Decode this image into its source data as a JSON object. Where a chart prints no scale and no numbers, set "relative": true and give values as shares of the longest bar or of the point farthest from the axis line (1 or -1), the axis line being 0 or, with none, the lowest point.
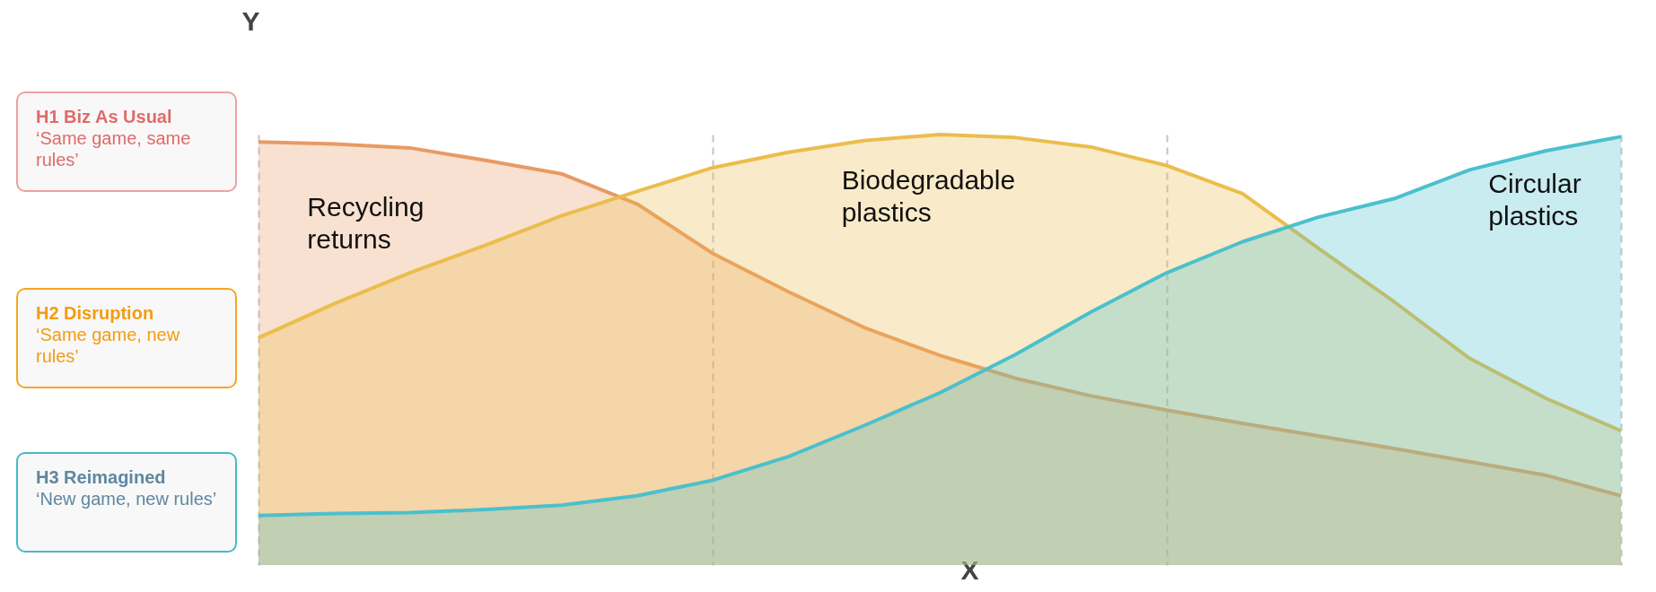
{
  "chart_data": {
    "type": "area",
    "relative": true,
    "xlabel": "X",
    "ylabel": "Y",
    "grid": "x",
    "tick_labels": false,
    "categories": [
      null,
      null,
      null,
      null,
      null,
      null,
      null,
      null,
      null,
      null,
      null,
      null,
      null,
      null,
      null,
      null,
      null,
      null,
      null
    ],
    "series": [
      {
        "name": "Recycling returns",
        "color": "#e89a63",
        "values": [
          0.983,
          0.978,
          0.969,
          0.94,
          0.909,
          0.839,
          0.724,
          0.635,
          0.552,
          0.487,
          0.434,
          0.393,
          0.36,
          0.329,
          0.3,
          0.271,
          0.24,
          0.209,
          0.161
        ]
      },
      {
        "name": "Biodegradable plastics",
        "color": "#ebbd4b",
        "values": [
          0.528,
          0.607,
          0.679,
          0.743,
          0.811,
          0.868,
          0.923,
          0.959,
          0.986,
          1.0,
          0.993,
          0.971,
          0.928,
          0.863,
          0.736,
          0.612,
          0.48,
          0.388,
          0.312
        ]
      },
      {
        "name": "Circular plastics",
        "color": "#4bc0cc",
        "values": [
          0.115,
          0.12,
          0.122,
          0.129,
          0.139,
          0.161,
          0.197,
          0.252,
          0.324,
          0.4,
          0.489,
          0.588,
          0.679,
          0.751,
          0.808,
          0.851,
          0.918,
          0.962,
          0.995
        ]
      }
    ],
    "annotations": [
      "H1 Biz As Usual",
      "‘Same game, same rules’",
      "H2 Disruption",
      "‘Same game, new rules’",
      "H3 Reimagined",
      "‘New game, new rules’"
    ]
  }
}
